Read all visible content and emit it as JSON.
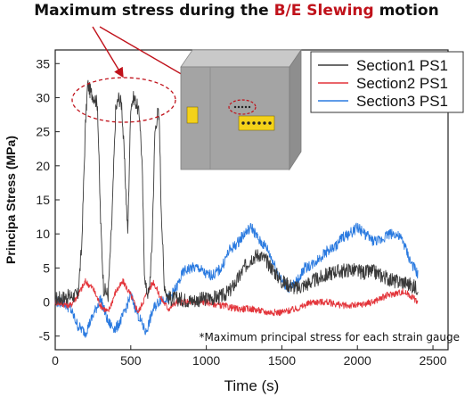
{
  "headline": {
    "pre": "Maximum stress during the ",
    "highlight": "B/E Slewing",
    "post": " motion",
    "highlight_color": "#c0121b"
  },
  "footnote": "*Maximum principal stress for each strain gauge",
  "illustration": {
    "icon": "enclosure-box-with-gauges-icon",
    "box_color": "#a4a4a4",
    "label_color": "#f4d21a"
  },
  "chart_data": {
    "type": "line",
    "xlabel": "Time (s)",
    "ylabel": "Principa Stress (MPa)",
    "xlim": [
      0,
      2600
    ],
    "ylim": [
      -7,
      37
    ],
    "xticks": [
      0,
      500,
      1000,
      1500,
      2000,
      2500
    ],
    "yticks": [
      -5,
      0,
      5,
      10,
      15,
      20,
      25,
      30,
      35
    ],
    "grid": false,
    "legend_position": "top-right",
    "series": [
      {
        "name": "Section1 PS1",
        "color": "#3a3a3a",
        "x": [
          0,
          150,
          175,
          200,
          215,
          230,
          260,
          280,
          300,
          320,
          350,
          375,
          400,
          420,
          440,
          460,
          480,
          500,
          520,
          540,
          560,
          575,
          590,
          600,
          620,
          640,
          660,
          680,
          690,
          700,
          720,
          740,
          760,
          800,
          900,
          1000,
          1100,
          1150,
          1200,
          1250,
          1300,
          1350,
          1400,
          1450,
          1500,
          1550,
          1600,
          1650,
          1700,
          1750,
          1800,
          1850,
          1900,
          1950,
          2000,
          2050,
          2100,
          2150,
          2200,
          2250,
          2300,
          2350,
          2400
        ],
        "y": [
          0.5,
          1,
          8,
          26,
          32,
          31,
          30,
          29,
          12,
          2,
          1,
          12,
          28,
          30,
          29,
          20,
          10,
          29,
          30,
          29,
          27,
          20,
          5,
          2,
          1,
          8,
          25,
          28,
          26,
          15,
          3,
          1,
          0.5,
          0.5,
          0.2,
          0.5,
          0.8,
          1.5,
          3,
          5,
          6.5,
          7,
          6,
          4.5,
          3,
          2.5,
          2,
          2.5,
          3,
          3.5,
          4,
          4.5,
          4.5,
          4.8,
          4.5,
          4.3,
          4.5,
          4,
          3.5,
          3,
          3,
          2.5,
          2
        ]
      },
      {
        "name": "Section2 PS1",
        "color": "#e3343a",
        "x": [
          0,
          100,
          150,
          200,
          250,
          300,
          350,
          400,
          450,
          500,
          550,
          600,
          650,
          700,
          750,
          800,
          900,
          1000,
          1100,
          1200,
          1300,
          1400,
          1500,
          1600,
          1700,
          1800,
          1900,
          2000,
          2100,
          2200,
          2300,
          2350,
          2400
        ],
        "y": [
          0,
          -0.5,
          1,
          3,
          2,
          -0.5,
          -1.5,
          1.5,
          3,
          1,
          -1.5,
          1,
          3,
          0.5,
          -1,
          0,
          0,
          0,
          -0.5,
          -1,
          -1,
          -1.5,
          -1.5,
          -1,
          0,
          0,
          -0.5,
          -0.5,
          0,
          1,
          1.5,
          1,
          0
        ]
      },
      {
        "name": "Section3 PS1",
        "color": "#2a7ae0",
        "x": [
          0,
          50,
          100,
          150,
          200,
          250,
          300,
          350,
          400,
          450,
          500,
          550,
          600,
          650,
          700,
          750,
          800,
          850,
          900,
          950,
          1000,
          1050,
          1100,
          1150,
          1200,
          1250,
          1300,
          1350,
          1400,
          1450,
          1500,
          1550,
          1600,
          1650,
          1700,
          1750,
          1800,
          1850,
          1900,
          1950,
          2000,
          2050,
          2100,
          2150,
          2200,
          2250,
          2300,
          2350,
          2400
        ],
        "y": [
          0,
          0,
          -1,
          -3.5,
          -4.5,
          -2,
          0.5,
          -3,
          -4,
          -2,
          1,
          -2,
          -4.5,
          -1,
          0.5,
          0.5,
          2,
          4.5,
          5,
          5,
          4,
          4,
          5,
          7.5,
          8.5,
          10,
          11,
          9,
          8,
          5.5,
          3,
          2,
          3,
          5,
          5.5,
          6.5,
          7.5,
          8,
          9.5,
          10,
          11,
          10,
          9,
          9,
          10,
          10,
          9,
          6,
          4
        ]
      }
    ]
  }
}
